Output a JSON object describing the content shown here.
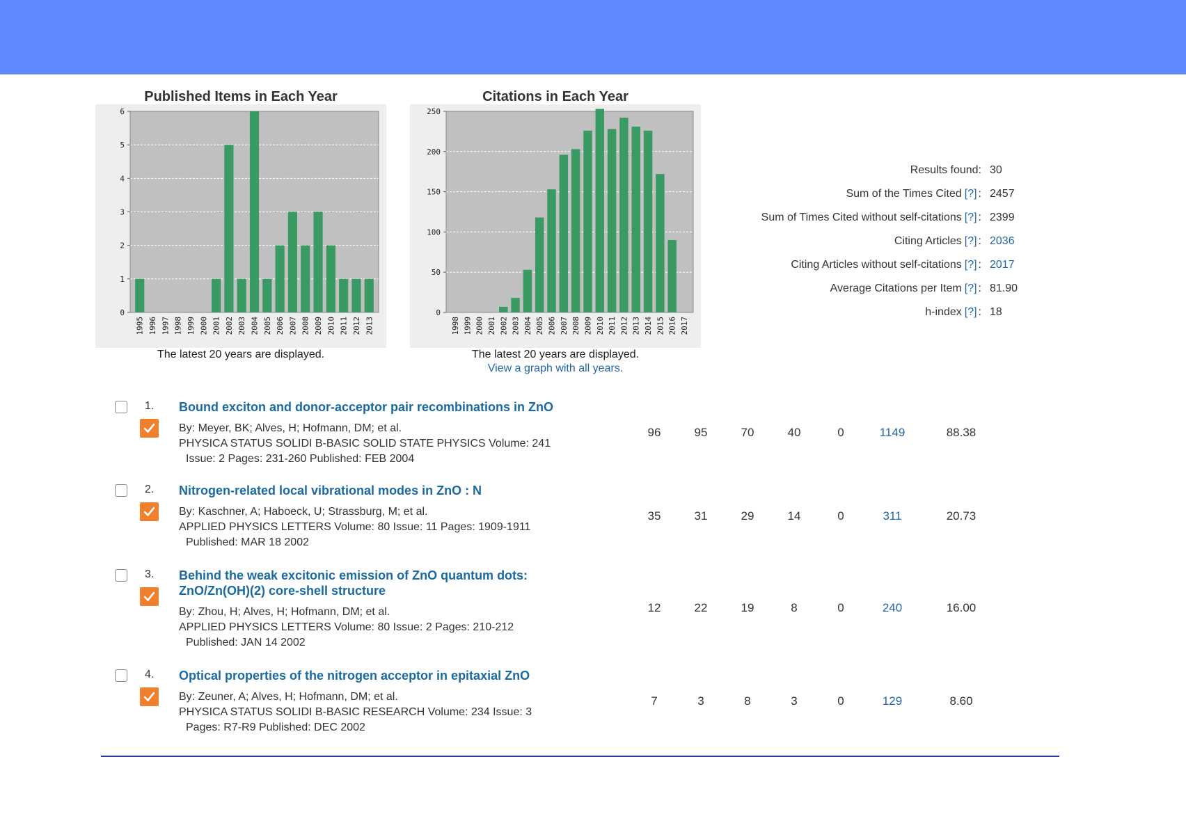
{
  "charts": {
    "published": {
      "title": "Published Items in Each Year",
      "caption": "The latest 20 years are displayed.",
      "chart_data": {
        "type": "bar",
        "title": "Published Items in Each Year",
        "categories": [
          "1995",
          "1996",
          "1997",
          "1998",
          "1999",
          "2000",
          "2001",
          "2002",
          "2003",
          "2004",
          "2005",
          "2006",
          "2007",
          "2008",
          "2009",
          "2010",
          "2011",
          "2012",
          "2013"
        ],
        "values": [
          1,
          0,
          0,
          0,
          0,
          0,
          1,
          5,
          1,
          6,
          1,
          2,
          3,
          2,
          3,
          2,
          1,
          1,
          1
        ],
        "ylim": [
          0,
          6
        ],
        "yticks": [
          "0",
          "1",
          "2",
          "3",
          "4",
          "5",
          "6"
        ],
        "grid": true,
        "bar_color": "#3a9a63",
        "plot_bg": "#c0c0c0"
      }
    },
    "citations": {
      "title": "Citations in Each Year",
      "caption": "The latest 20 years are displayed.",
      "link": "View a graph with all years.",
      "chart_data": {
        "type": "bar",
        "title": "Citations in Each Year",
        "categories": [
          "1998",
          "1999",
          "2000",
          "2001",
          "2002",
          "2003",
          "2004",
          "2005",
          "2006",
          "2007",
          "2008",
          "2009",
          "2010",
          "2011",
          "2012",
          "2013",
          "2014",
          "2015",
          "2016",
          "2017"
        ],
        "values": [
          0,
          0,
          0,
          0,
          7,
          18,
          53,
          118,
          153,
          196,
          203,
          226,
          253,
          228,
          242,
          231,
          226,
          172,
          90,
          0
        ],
        "ylim": [
          0,
          250
        ],
        "yticks": [
          "0",
          "50",
          "100",
          "150",
          "200",
          "250"
        ],
        "grid": true,
        "bar_color": "#3a9a63",
        "plot_bg": "#c0c0c0"
      }
    }
  },
  "stats": {
    "help": "[?]",
    "results_found": {
      "label": "Results found:",
      "value": "30"
    },
    "sum_times_cited": {
      "label": "Sum of the Times Cited",
      "value": "2457"
    },
    "sum_without_self": {
      "label": "Sum of Times Cited without self-citations",
      "value": "2399"
    },
    "citing_articles": {
      "label": "Citing Articles",
      "value": "2036"
    },
    "citing_without_self": {
      "label": "Citing Articles without self-citations",
      "value": "2017"
    },
    "average": {
      "label": "Average Citations per Item",
      "value": "81.90"
    },
    "h_index": {
      "label": "h-index",
      "value": "18"
    },
    "colon": ":"
  },
  "results": [
    {
      "num": "1.",
      "title": [
        "Bound exciton and donor-acceptor pair recombinations in ZnO"
      ],
      "authors": "By: Meyer, BK; Alves, H; Hofmann, DM; et al.",
      "source1": "PHYSICA STATUS SOLIDI B-BASIC SOLID STATE PHYSICS  Volume: 241",
      "source2": "Issue: 2   Pages: 231-260   Published: FEB 2004",
      "cells": [
        "96",
        "95",
        "70",
        "40",
        "0",
        "1149",
        "88.38"
      ]
    },
    {
      "num": "2.",
      "title": [
        "Nitrogen-related local vibrational modes in ZnO : N"
      ],
      "authors": "By: Kaschner, A; Haboeck, U; Strassburg, M; et al.",
      "source1": "APPLIED PHYSICS LETTERS  Volume: 80   Issue: 11   Pages: 1909-1911",
      "source2": "Published: MAR 18 2002",
      "cells": [
        "35",
        "31",
        "29",
        "14",
        "0",
        "311",
        "20.73"
      ]
    },
    {
      "num": "3.",
      "title": [
        "Behind the weak excitonic emission of ZnO quantum dots:",
        "ZnO/Zn(OH)(2) core-shell structure"
      ],
      "authors": "By: Zhou, H; Alves, H; Hofmann, DM; et al.",
      "source1": "APPLIED PHYSICS LETTERS  Volume: 80   Issue: 2   Pages: 210-212",
      "source2": "Published: JAN 14 2002",
      "cells": [
        "12",
        "22",
        "19",
        "8",
        "0",
        "240",
        "16.00"
      ]
    },
    {
      "num": "4.",
      "title": [
        "Optical properties of the nitrogen acceptor in epitaxial ZnO"
      ],
      "authors": "By: Zeuner, A; Alves, H; Hofmann, DM; et al.",
      "source1": "PHYSICA STATUS SOLIDI B-BASIC RESEARCH  Volume: 234   Issue: 3",
      "source2": "Pages: R7-R9   Published: DEC 2002",
      "cells": [
        "7",
        "3",
        "8",
        "3",
        "0",
        "129",
        "8.60"
      ]
    }
  ],
  "colors": {
    "banner": "#6088ff",
    "link": "#2266aa",
    "title_link": "#1a6aa0",
    "mark": "#f07f2e",
    "rule": "#2a35a8"
  }
}
